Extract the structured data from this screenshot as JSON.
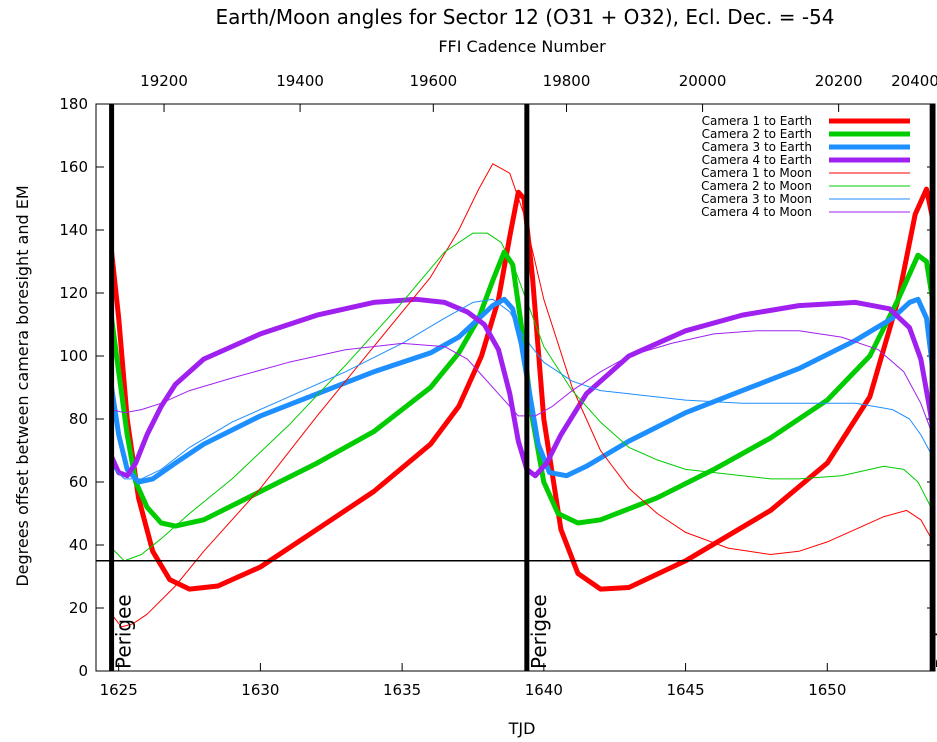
{
  "chart_data": {
    "type": "line",
    "title": "Earth/Moon angles for Sector 12 (O31 + O32), Ecl. Dec. = -54",
    "xlabel": "TJD",
    "ylabel": "Degrees offset between camera boresight and EM",
    "x2label": "FFI Cadence Number",
    "xlim": [
      1624.2,
      1653.8
    ],
    "ylim": [
      0,
      180
    ],
    "x_ticks": [
      1625,
      1630,
      1635,
      1640,
      1645,
      1650
    ],
    "y_ticks": [
      0,
      20,
      40,
      60,
      80,
      100,
      120,
      140,
      160,
      180
    ],
    "x2_ticks": [
      19200,
      19400,
      19600,
      19800,
      20000,
      20200,
      20400
    ],
    "x2_tick_tjd": [
      1626.6,
      1631.4,
      1636.1,
      1640.8,
      1645.6,
      1650.4,
      1655.1
    ],
    "grid": false,
    "legend_position": "top-right",
    "threshold_line": {
      "y": 35,
      "color": "#000000"
    },
    "perigees": [
      {
        "x": 1624.75,
        "label": "Perigee"
      },
      {
        "x": 1639.4,
        "label": "Perigee"
      },
      {
        "x": 1653.7,
        "label": "Perigee"
      }
    ],
    "series": [
      {
        "name": "Camera 1 to Earth",
        "color": "#ff0000",
        "width": 5,
        "x": [
          1624.75,
          1625.0,
          1625.3,
          1625.7,
          1626.2,
          1626.8,
          1627.5,
          1628.5,
          1630,
          1632,
          1634,
          1636,
          1637,
          1637.8,
          1638.4,
          1638.8,
          1639.1,
          1639.3,
          1639.6,
          1640.0,
          1640.6,
          1641.2,
          1642.0,
          1643,
          1645,
          1648,
          1650,
          1651.5,
          1652.5,
          1653.1,
          1653.5,
          1653.8
        ],
        "y": [
          133,
          112,
          80,
          55,
          38,
          29,
          26,
          27,
          33,
          45,
          57,
          72,
          84,
          100,
          118,
          138,
          152,
          150,
          125,
          80,
          45,
          31,
          26,
          26.5,
          35,
          51,
          66,
          87,
          118,
          145,
          153,
          140
        ]
      },
      {
        "name": "Camera 2 to Earth",
        "color": "#00cc00",
        "width": 5,
        "x": [
          1624.75,
          1625.0,
          1625.3,
          1625.6,
          1626.0,
          1626.5,
          1627,
          1628,
          1630,
          1632,
          1634,
          1636,
          1637,
          1637.7,
          1638.2,
          1638.6,
          1638.9,
          1639.2,
          1639.6,
          1640.0,
          1640.5,
          1641.2,
          1642,
          1644,
          1646,
          1648,
          1650,
          1651.5,
          1652.5,
          1653.2,
          1653.5,
          1653.8
        ],
        "y": [
          112,
          95,
          75,
          60,
          52,
          47,
          46,
          48,
          57,
          66,
          76,
          90,
          101,
          112,
          124,
          133,
          129,
          110,
          80,
          60,
          50,
          47,
          48,
          55,
          64,
          74,
          86,
          100,
          118,
          132,
          130,
          113
        ]
      },
      {
        "name": "Camera 3 to Earth",
        "color": "#1e8fff",
        "width": 5,
        "x": [
          1624.75,
          1625.0,
          1625.3,
          1625.7,
          1626.2,
          1627,
          1628,
          1630,
          1632,
          1634,
          1636,
          1637,
          1637.6,
          1638.2,
          1638.6,
          1638.9,
          1639.2,
          1639.5,
          1639.8,
          1640.2,
          1640.8,
          1641.5,
          1643,
          1645,
          1647,
          1649,
          1651,
          1652.3,
          1652.9,
          1653.2,
          1653.5,
          1653.8
        ],
        "y": [
          90,
          75,
          64,
          60,
          61,
          66,
          72,
          81,
          88,
          95,
          101,
          106,
          111,
          116,
          118,
          115,
          104,
          88,
          72,
          63,
          62,
          65,
          73,
          82,
          89,
          96,
          105,
          112,
          117,
          118,
          112,
          90
        ]
      },
      {
        "name": "Camera 4 to Earth",
        "color": "#a020f0",
        "width": 5,
        "x": [
          1624.75,
          1625.0,
          1625.3,
          1625.6,
          1626.0,
          1626.5,
          1627,
          1628,
          1630,
          1632,
          1634,
          1635.5,
          1636.5,
          1637.3,
          1637.9,
          1638.4,
          1638.8,
          1639.1,
          1639.4,
          1639.7,
          1640.1,
          1640.6,
          1641.5,
          1643,
          1645,
          1647,
          1649,
          1651,
          1652.2,
          1652.9,
          1653.3,
          1653.6,
          1653.8
        ],
        "y": [
          68,
          63,
          62,
          66,
          75,
          84,
          91,
          99,
          107,
          113,
          117,
          118,
          117,
          114,
          110,
          102,
          88,
          73,
          64,
          62,
          66,
          75,
          88,
          100,
          108,
          113,
          116,
          117,
          115,
          109,
          99,
          84,
          73
        ]
      },
      {
        "name": "Camera 1 to Moon",
        "color": "#ff0000",
        "width": 1,
        "x": [
          1624.75,
          1625.1,
          1625.5,
          1626,
          1627,
          1628,
          1630,
          1632,
          1634,
          1636,
          1637,
          1637.7,
          1638.2,
          1638.8,
          1639.3,
          1640,
          1641,
          1642,
          1643,
          1644,
          1645,
          1646.5,
          1648,
          1649,
          1650,
          1651,
          1652,
          1652.8,
          1653.3,
          1653.8
        ],
        "y": [
          18,
          14,
          15,
          18,
          27,
          38,
          58,
          81,
          103,
          125,
          140,
          153,
          161,
          158,
          145,
          118,
          90,
          70,
          58,
          50,
          44,
          39,
          37,
          38,
          41,
          45,
          49,
          51,
          48,
          40
        ]
      },
      {
        "name": "Camera 2 to Moon",
        "color": "#00cc00",
        "width": 1,
        "x": [
          1624.75,
          1625.2,
          1625.8,
          1626.5,
          1627.5,
          1629,
          1631,
          1633,
          1635,
          1636.5,
          1637.5,
          1638.0,
          1638.5,
          1639.0,
          1639.5,
          1640,
          1641,
          1642,
          1643,
          1644,
          1645,
          1647,
          1648,
          1649,
          1650.5,
          1652,
          1652.7,
          1653.2,
          1653.6,
          1653.8
        ],
        "y": [
          39,
          35,
          37,
          42,
          50,
          61,
          78,
          97,
          117,
          133,
          139,
          139,
          136,
          127,
          115,
          103,
          89,
          79,
          71,
          67,
          64,
          62,
          61,
          61,
          62,
          65,
          64,
          60,
          53,
          50
        ]
      },
      {
        "name": "Camera 3 to Moon",
        "color": "#1e8fff",
        "width": 1,
        "x": [
          1624.75,
          1625.2,
          1625.8,
          1626.5,
          1627.5,
          1629,
          1631,
          1633,
          1635,
          1636.5,
          1637.5,
          1638.2,
          1638.8,
          1639.3,
          1640,
          1641,
          1642,
          1643,
          1645,
          1647,
          1649,
          1651,
          1652.3,
          1652.9,
          1653.3,
          1653.6,
          1653.8
        ],
        "y": [
          65,
          61,
          61,
          64,
          71,
          79,
          87,
          95,
          104,
          112,
          117,
          118,
          114,
          106,
          98,
          92,
          89,
          88,
          86,
          85,
          85,
          85,
          83,
          80,
          75,
          70,
          67
        ]
      },
      {
        "name": "Camera 4 to Moon",
        "color": "#a020f0",
        "width": 1,
        "x": [
          1624.75,
          1625.2,
          1625.8,
          1626.5,
          1627.5,
          1629,
          1631,
          1633,
          1635,
          1636.5,
          1637.3,
          1637.9,
          1638.5,
          1639.1,
          1639.7,
          1640.3,
          1641,
          1642,
          1643,
          1644.5,
          1646,
          1647.5,
          1649,
          1650.5,
          1651.8,
          1652.7,
          1653.3,
          1653.8
        ],
        "y": [
          83,
          82,
          83,
          85,
          89,
          93,
          98,
          102,
          104,
          103,
          99,
          93,
          87,
          81,
          81,
          84,
          89,
          95,
          100,
          104,
          107,
          108,
          108,
          106,
          102,
          95,
          85,
          73
        ]
      }
    ]
  }
}
